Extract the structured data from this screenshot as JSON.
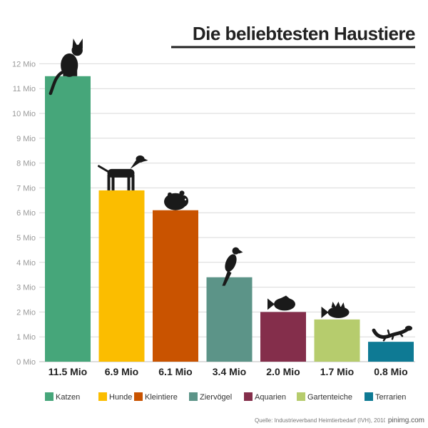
{
  "chart_data": {
    "type": "bar",
    "title": "Die beliebtesten Haustiere",
    "categories": [
      "Katzen",
      "Hunde",
      "Kleintiere",
      "Ziervögel",
      "Aquarien",
      "Gartenteiche",
      "Terrarien"
    ],
    "values": [
      11.5,
      6.9,
      6.1,
      3.4,
      2.0,
      1.7,
      0.8
    ],
    "value_labels": [
      "11.5 Mio",
      "6.9 Mio",
      "6.1 Mio",
      "3.4 Mio",
      "2.0 Mio",
      "1.7 Mio",
      "0.8 Mio"
    ],
    "colors": [
      "#46a67a",
      "#fbbd00",
      "#c95300",
      "#5c9488",
      "#842e4b",
      "#b6cc6d",
      "#0e7a94"
    ],
    "icons": [
      "cat-icon",
      "dog-icon",
      "hamster-icon",
      "bird-icon",
      "fish-icon",
      "perch-icon",
      "lizard-icon"
    ],
    "y_ticks": [
      0,
      1,
      2,
      3,
      4,
      5,
      6,
      7,
      8,
      9,
      10,
      11,
      12
    ],
    "y_tick_labels": [
      "0 Mio",
      "1 Mio",
      "2 Mio",
      "3 Mio",
      "4 Mio",
      "5 Mio",
      "6 Mio",
      "7 Mio",
      "8 Mio",
      "9 Mio",
      "10 Mio",
      "11 Mio",
      "12 Mio"
    ],
    "ylim": [
      0,
      12
    ],
    "grid": true,
    "legend": "bottom",
    "xlabel": "",
    "ylabel": ""
  },
  "source": "Quelle: Industrieverband Heimtierbedarf (IVH), 2010 | Grafik: ...",
  "watermark": "pinimg.com"
}
